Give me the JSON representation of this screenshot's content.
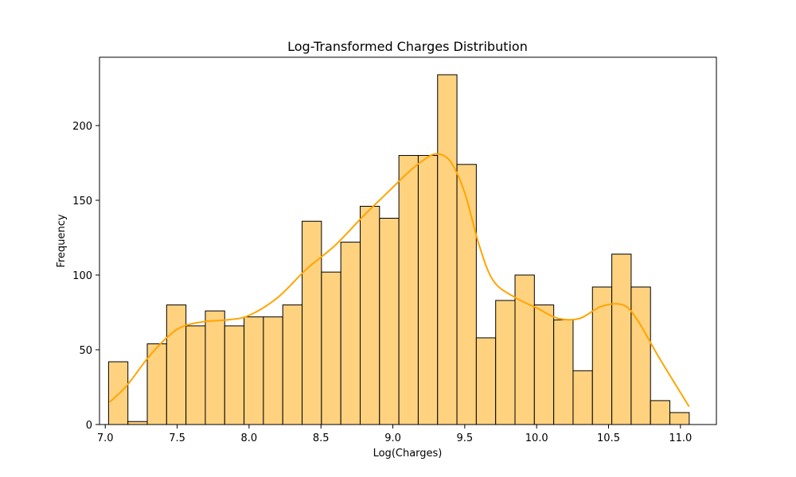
{
  "colors": {
    "bar_fill": "#ffd280",
    "bar_edge": "#000000",
    "kde_line": "#ffa500",
    "axis": "#000000",
    "background": "#ffffff"
  },
  "chart_data": {
    "type": "bar",
    "title": "Log-Transformed Charges Distribution",
    "xlabel": "Log(Charges)",
    "ylabel": "Frequency",
    "xlim": [
      6.96,
      11.25
    ],
    "ylim": [
      0,
      245.7
    ],
    "grid": false,
    "legend": "none",
    "x_ticks": [
      7.0,
      7.5,
      8.0,
      8.5,
      9.0,
      9.5,
      10.0,
      10.5,
      11.0
    ],
    "x_tick_labels": [
      "7.0",
      "7.5",
      "8.0",
      "8.5",
      "9.0",
      "9.5",
      "10.0",
      "10.5",
      "11.0"
    ],
    "y_ticks": [
      0,
      50,
      100,
      150,
      200
    ],
    "y_tick_labels": [
      "0",
      "50",
      "100",
      "150",
      "200"
    ],
    "bin_start": 7.023,
    "bin_width": 0.1346,
    "values": [
      42,
      2,
      54,
      80,
      66,
      76,
      66,
      72,
      72,
      80,
      136,
      102,
      122,
      146,
      138,
      180,
      180,
      234,
      174,
      58,
      83,
      100,
      80,
      70,
      36,
      92,
      114,
      92,
      16,
      8
    ],
    "kde": {
      "x": [
        7.03,
        7.15,
        7.3,
        7.45,
        7.55,
        7.7,
        7.85,
        8.0,
        8.2,
        8.4,
        8.6,
        8.8,
        8.95,
        9.1,
        9.2,
        9.3,
        9.4,
        9.5,
        9.6,
        9.7,
        9.85,
        10.0,
        10.15,
        10.3,
        10.45,
        10.6,
        10.7,
        10.85,
        11.06
      ],
      "y": [
        15,
        26,
        45,
        60,
        66,
        69,
        70,
        73,
        85,
        104,
        120,
        140,
        154,
        168,
        176,
        181,
        176,
        155,
        120,
        96,
        85,
        78,
        71,
        71,
        79,
        80,
        70,
        45,
        12
      ]
    }
  }
}
